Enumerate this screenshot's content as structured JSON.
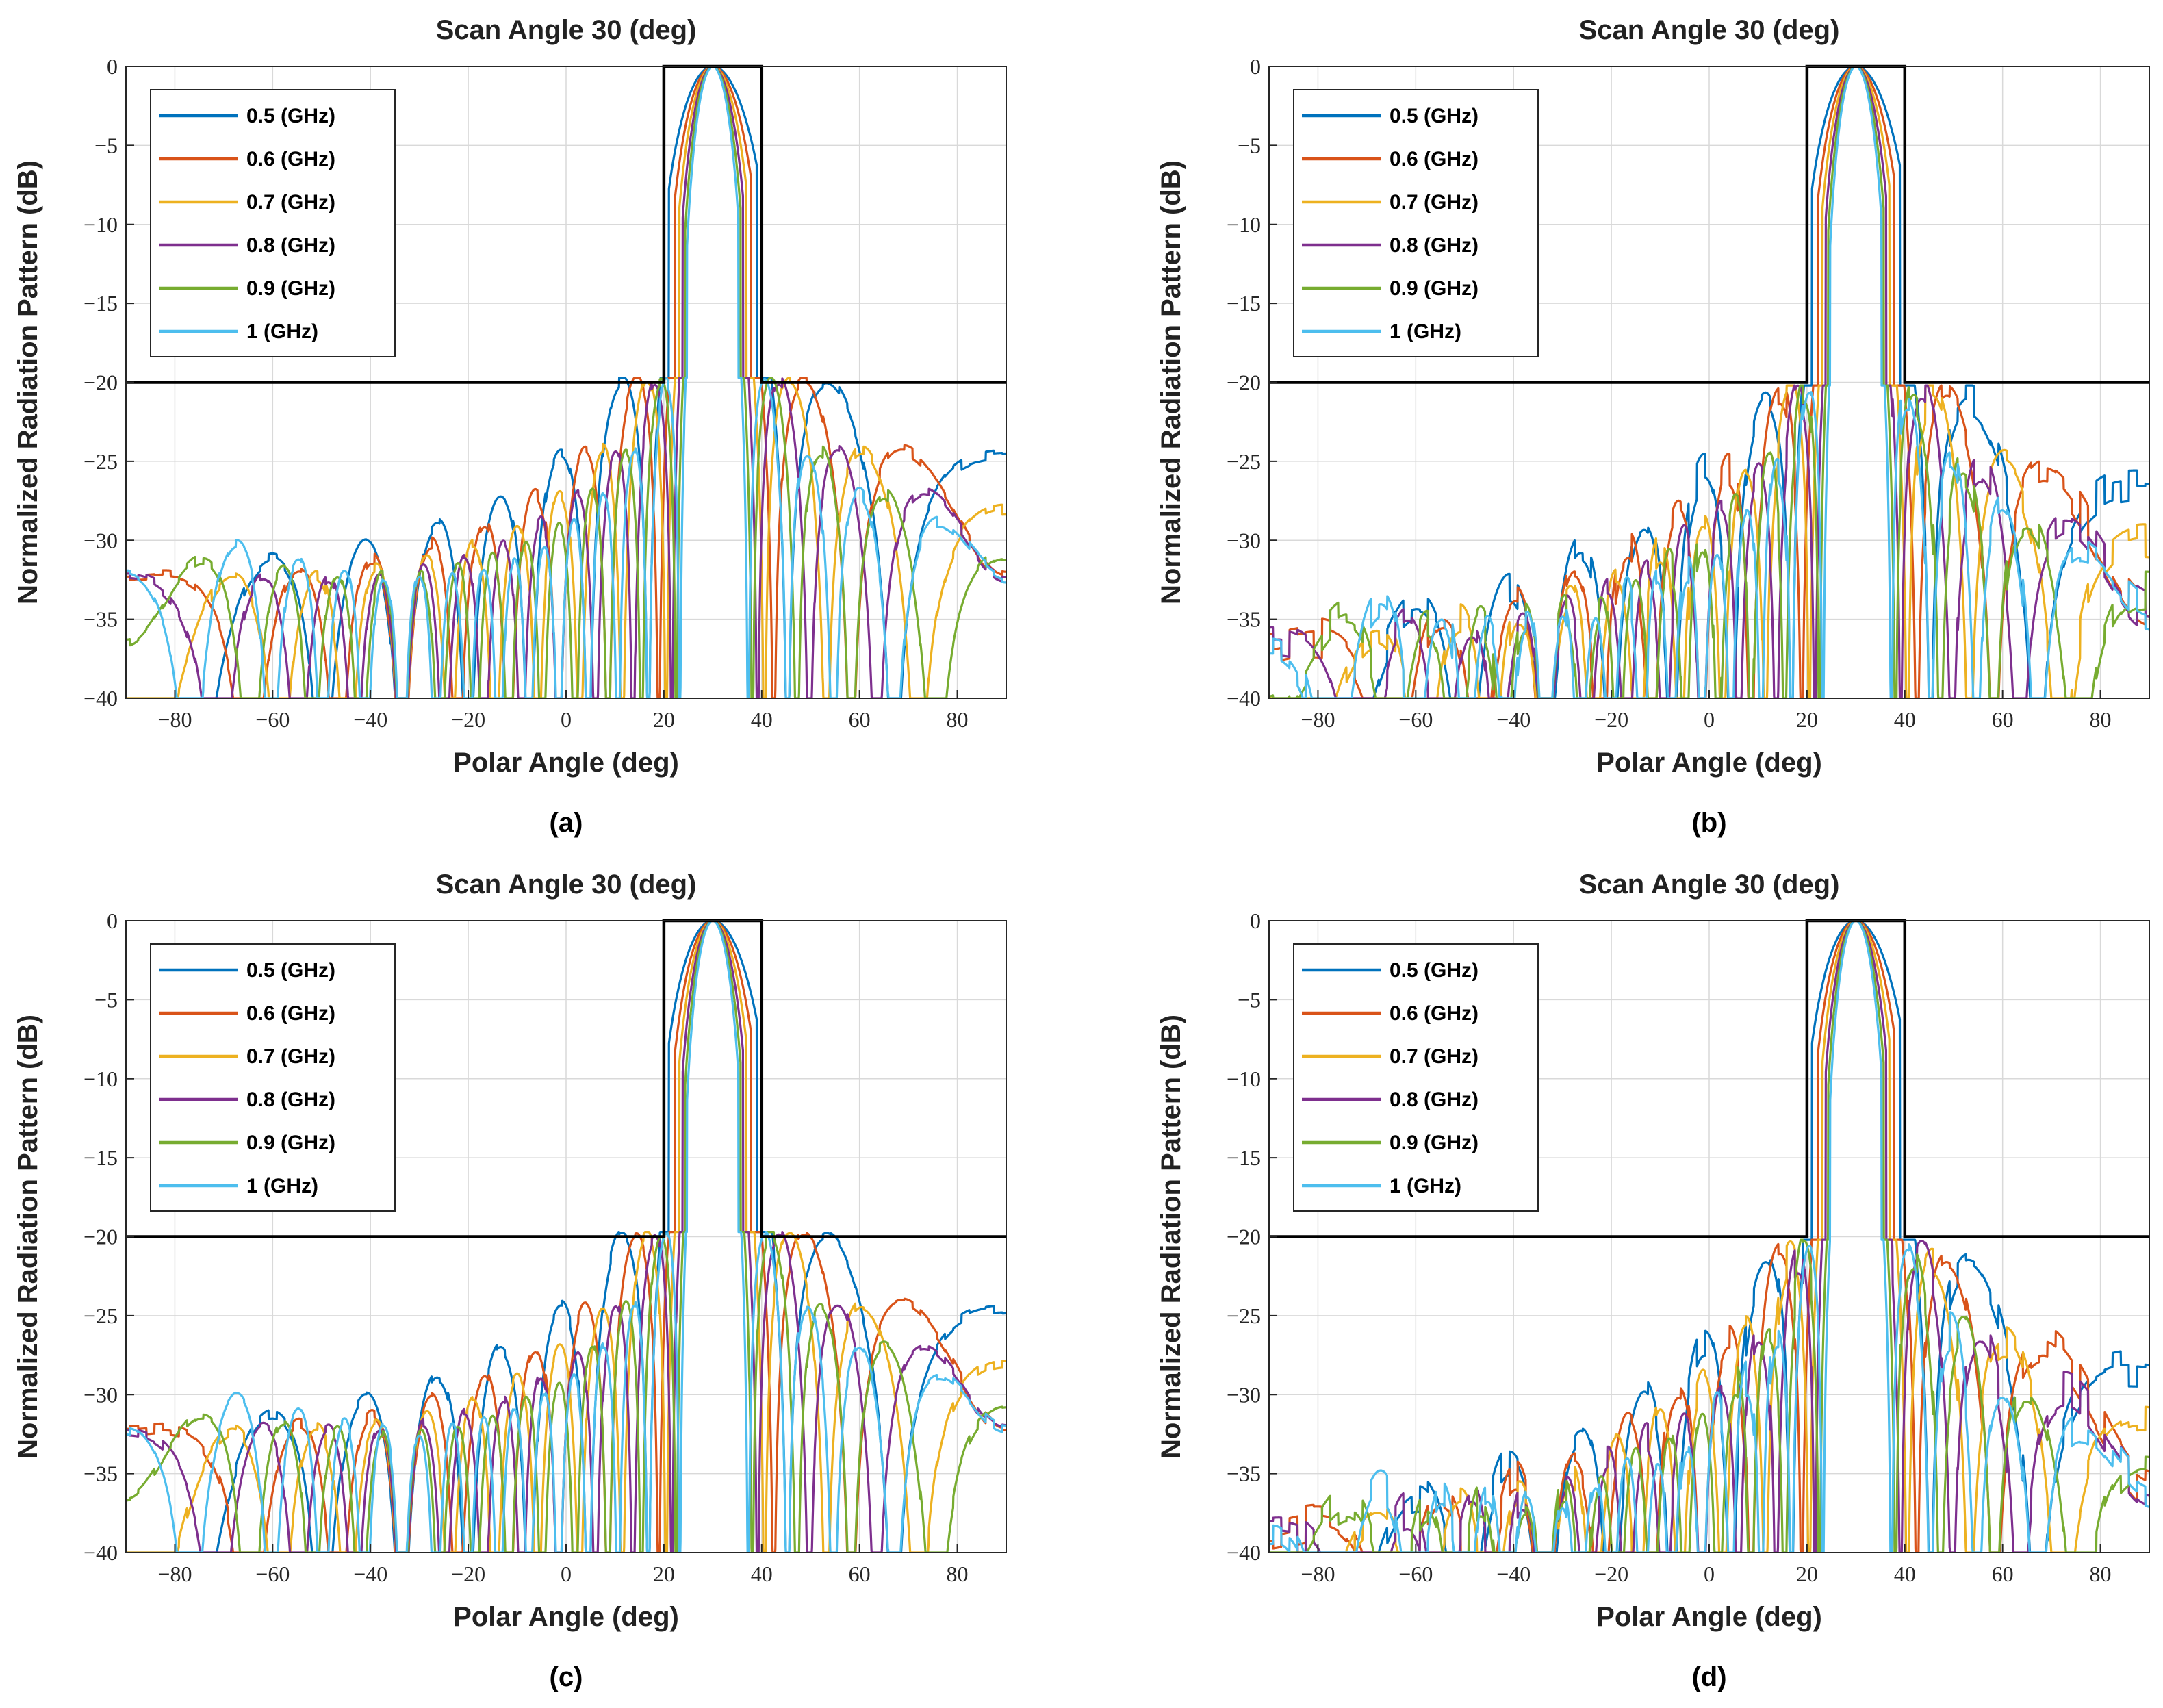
{
  "colors": {
    "series": [
      "#0072BD",
      "#D95319",
      "#EDB120",
      "#7E2F8E",
      "#77AC30",
      "#4DBEEE"
    ],
    "mask": "#000000",
    "grid": "#d9d9d9",
    "axis": "#262626"
  },
  "chart_data": [
    {
      "panel": "a",
      "type": "line",
      "title": "Scan Angle 30 (deg)",
      "xlabel": "Polar Angle (deg)",
      "ylabel": "Normalized Radiation Pattern (dB)",
      "caption": "(a)",
      "xlim": [
        -90,
        90
      ],
      "ylim": [
        -40,
        0
      ],
      "xticks": [
        -80,
        -60,
        -40,
        -20,
        0,
        20,
        40,
        60,
        80
      ],
      "yticks": [
        -40,
        -35,
        -30,
        -25,
        -20,
        -15,
        -10,
        -5,
        0
      ],
      "xtick_labels": [
        "−80",
        "−60",
        "−40",
        "−20",
        "0",
        "20",
        "40",
        "60",
        "80"
      ],
      "ytick_labels": [
        "−40",
        "−35",
        "−30",
        "−25",
        "−20",
        "−15",
        "−10",
        "−5",
        "0"
      ],
      "grid": true,
      "legend_position": "top-left",
      "legend": [
        "0.5 (GHz)",
        "0.6 (GHz)",
        "0.7 (GHz)",
        "0.8 (GHz)",
        "0.9 (GHz)",
        "1 (GHz)"
      ],
      "scan_angle": 30,
      "frequencies_ghz": [
        0.5,
        0.6,
        0.7,
        0.8,
        0.9,
        1.0
      ],
      "mask": {
        "x": [
          -90,
          20,
          20,
          40,
          40,
          90
        ],
        "y": [
          -20,
          -20,
          0,
          0,
          -20,
          -20
        ]
      },
      "sidelobe_level": -20,
      "wing_envelope": "flat"
    },
    {
      "panel": "b",
      "type": "line",
      "title": "Scan Angle 30 (deg)",
      "xlabel": "Polar Angle (deg)",
      "ylabel": "Normalized Radiation Pattern (dB)",
      "caption": "(b)",
      "xlim": [
        -90,
        90
      ],
      "ylim": [
        -40,
        0
      ],
      "xticks": [
        -80,
        -60,
        -40,
        -20,
        0,
        20,
        40,
        60,
        80
      ],
      "yticks": [
        -40,
        -35,
        -30,
        -25,
        -20,
        -15,
        -10,
        -5,
        0
      ],
      "xtick_labels": [
        "−80",
        "−60",
        "−40",
        "−20",
        "0",
        "20",
        "40",
        "60",
        "80"
      ],
      "ytick_labels": [
        "−40",
        "−35",
        "−30",
        "−25",
        "−20",
        "−15",
        "−10",
        "−5",
        "0"
      ],
      "grid": true,
      "legend_position": "top-left",
      "legend": [
        "0.5 (GHz)",
        "0.6 (GHz)",
        "0.7 (GHz)",
        "0.8 (GHz)",
        "0.9 (GHz)",
        "1 (GHz)"
      ],
      "scan_angle": 30,
      "frequencies_ghz": [
        0.5,
        0.6,
        0.7,
        0.8,
        0.9,
        1.0
      ],
      "mask": {
        "x": [
          -90,
          20,
          20,
          40,
          40,
          90
        ],
        "y": [
          -20,
          -20,
          0,
          0,
          -20,
          -20
        ]
      },
      "sidelobe_level": -20.5,
      "wing_envelope": "tapered"
    },
    {
      "panel": "c",
      "type": "line",
      "title": "Scan Angle 30 (deg)",
      "xlabel": "Polar Angle (deg)",
      "ylabel": "Normalized Radiation Pattern (dB)",
      "caption": "(c)",
      "xlim": [
        -90,
        90
      ],
      "ylim": [
        -40,
        0
      ],
      "xticks": [
        -80,
        -60,
        -40,
        -20,
        0,
        20,
        40,
        60,
        80
      ],
      "yticks": [
        -40,
        -35,
        -30,
        -25,
        -20,
        -15,
        -10,
        -5,
        0
      ],
      "xtick_labels": [
        "−80",
        "−60",
        "−40",
        "−20",
        "0",
        "20",
        "40",
        "60",
        "80"
      ],
      "ytick_labels": [
        "−40",
        "−35",
        "−30",
        "−25",
        "−20",
        "−15",
        "−10",
        "−5",
        "0"
      ],
      "grid": true,
      "legend_position": "top-left",
      "legend": [
        "0.5 (GHz)",
        "0.6 (GHz)",
        "0.7 (GHz)",
        "0.8 (GHz)",
        "0.9 (GHz)",
        "1 (GHz)"
      ],
      "scan_angle": 30,
      "frequencies_ghz": [
        0.5,
        0.6,
        0.7,
        0.8,
        0.9,
        1.0
      ],
      "mask": {
        "x": [
          -90,
          20,
          20,
          40,
          40,
          90
        ],
        "y": [
          -20,
          -20,
          0,
          0,
          -20,
          -20
        ]
      },
      "sidelobe_level": -20,
      "wing_envelope": "flat"
    },
    {
      "panel": "d",
      "type": "line",
      "title": "Scan Angle 30 (deg)",
      "xlabel": "Polar Angle (deg)",
      "ylabel": "Normalized Radiation Pattern (dB)",
      "caption": "(d)",
      "xlim": [
        -90,
        90
      ],
      "ylim": [
        -40,
        0
      ],
      "xticks": [
        -80,
        -60,
        -40,
        -20,
        0,
        20,
        40,
        60,
        80
      ],
      "yticks": [
        -40,
        -35,
        -30,
        -25,
        -20,
        -15,
        -10,
        -5,
        0
      ],
      "xtick_labels": [
        "−80",
        "−60",
        "−40",
        "−20",
        "0",
        "20",
        "40",
        "60",
        "80"
      ],
      "ytick_labels": [
        "−40",
        "−35",
        "−30",
        "−25",
        "−20",
        "−15",
        "−10",
        "−5",
        "0"
      ],
      "grid": true,
      "legend_position": "top-left",
      "legend": [
        "0.5 (GHz)",
        "0.6 (GHz)",
        "0.7 (GHz)",
        "0.8 (GHz)",
        "0.9 (GHz)",
        "1 (GHz)"
      ],
      "scan_angle": 30,
      "frequencies_ghz": [
        0.5,
        0.6,
        0.7,
        0.8,
        0.9,
        1.0
      ],
      "mask": {
        "x": [
          -90,
          18,
          20,
          20,
          40,
          40,
          90
        ],
        "y": [
          -20,
          -20,
          -20,
          0,
          0,
          -20,
          -20
        ]
      },
      "sidelobe_level": -20.5,
      "wing_envelope": "decaying"
    }
  ]
}
